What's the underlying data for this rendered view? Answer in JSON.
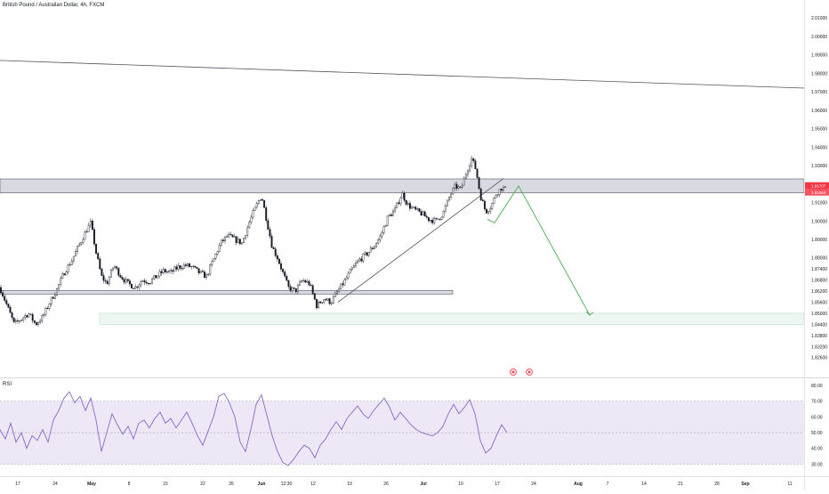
{
  "header": {
    "symbol_title": "British Pound / Australian Dollar",
    "interval": "4h",
    "exchange": "FXCM"
  },
  "colors": {
    "candle": "#131722",
    "zone_fill": "#d1d4dc",
    "zone_border": "#50535e",
    "target_fill": "#e6f4ec",
    "target_border": "#b2dfc6",
    "projection": "#4caf50",
    "rsi_line": "#7e57c2",
    "rsi_band": "#ede7f6",
    "price_tag": "#f23645",
    "event_icon": "#f23645"
  },
  "icons": {
    "events": [
      "economic-event-icon",
      "economic-event-icon"
    ]
  },
  "chart_data": [
    {
      "type": "candlestick",
      "title": "British Pound / Australian Dollar, 4h, FXCM",
      "y_axis": {
        "ticks": [
          "2.01000",
          "2.00000",
          "1.99000",
          "1.98000",
          "1.97000",
          "1.96000",
          "1.95000",
          "1.94000",
          "1.93000",
          "1.92000",
          "1.91000",
          "1.90000",
          "1.89000",
          "1.88000",
          "1.87400",
          "1.86800",
          "1.86200",
          "1.85600",
          "1.85000",
          "1.84400",
          "1.83800",
          "1.83200",
          "1.82600"
        ],
        "range": [
          1.822,
          2.013
        ]
      },
      "x_axis": {
        "ticks": [
          "17",
          "24",
          "May",
          "8",
          "15",
          "22",
          "26",
          "Jun",
          "12:30",
          "12",
          "19",
          "26",
          "Jul",
          "10",
          "17",
          "24",
          "Aug",
          "7",
          "14",
          "21",
          "28",
          "Sep",
          "11"
        ]
      },
      "current_price": {
        "bid": "1.91707",
        "ask": "1.91564"
      },
      "price_path": [
        [
          0,
          1.864
        ],
        [
          8,
          1.854
        ],
        [
          16,
          1.844
        ],
        [
          24,
          1.847
        ],
        [
          32,
          1.85
        ],
        [
          40,
          1.844
        ],
        [
          48,
          1.848
        ],
        [
          56,
          1.856
        ],
        [
          64,
          1.863
        ],
        [
          72,
          1.872
        ],
        [
          80,
          1.878
        ],
        [
          88,
          1.886
        ],
        [
          96,
          1.894
        ],
        [
          102,
          1.899
        ],
        [
          108,
          1.883
        ],
        [
          114,
          1.87
        ],
        [
          120,
          1.866
        ],
        [
          128,
          1.876
        ],
        [
          136,
          1.87
        ],
        [
          144,
          1.866
        ],
        [
          152,
          1.864
        ],
        [
          160,
          1.868
        ],
        [
          168,
          1.867
        ],
        [
          176,
          1.87
        ],
        [
          184,
          1.873
        ],
        [
          192,
          1.872
        ],
        [
          200,
          1.875
        ],
        [
          208,
          1.876
        ],
        [
          216,
          1.875
        ],
        [
          224,
          1.872
        ],
        [
          232,
          1.87
        ],
        [
          240,
          1.879
        ],
        [
          248,
          1.888
        ],
        [
          256,
          1.892
        ],
        [
          264,
          1.89
        ],
        [
          272,
          1.888
        ],
        [
          280,
          1.899
        ],
        [
          288,
          1.908
        ],
        [
          294,
          1.914
        ],
        [
          300,
          1.9
        ],
        [
          306,
          1.886
        ],
        [
          312,
          1.88
        ],
        [
          318,
          1.872
        ],
        [
          324,
          1.864
        ],
        [
          332,
          1.862
        ],
        [
          340,
          1.868
        ],
        [
          348,
          1.866
        ],
        [
          356,
          1.854
        ],
        [
          364,
          1.858
        ],
        [
          372,
          1.856
        ],
        [
          380,
          1.862
        ],
        [
          388,
          1.868
        ],
        [
          396,
          1.874
        ],
        [
          404,
          1.879
        ],
        [
          412,
          1.882
        ],
        [
          420,
          1.886
        ],
        [
          428,
          1.892
        ],
        [
          436,
          1.902
        ],
        [
          444,
          1.906
        ],
        [
          452,
          1.915
        ],
        [
          458,
          1.909
        ],
        [
          466,
          1.906
        ],
        [
          474,
          1.904
        ],
        [
          482,
          1.901
        ],
        [
          490,
          1.9
        ],
        [
          498,
          1.904
        ],
        [
          506,
          1.914
        ],
        [
          512,
          1.919
        ],
        [
          518,
          1.917
        ],
        [
          524,
          1.926
        ],
        [
          530,
          1.934
        ],
        [
          535,
          1.928
        ],
        [
          540,
          1.914
        ],
        [
          546,
          1.905
        ],
        [
          552,
          1.908
        ],
        [
          558,
          1.915
        ],
        [
          564,
          1.918
        ],
        [
          570,
          1.917
        ]
      ],
      "zones": [
        {
          "name": "resistance",
          "from": 1.9152,
          "to": 1.9228
        },
        {
          "name": "support",
          "from": 1.8604,
          "to": 1.8624
        },
        {
          "name": "target",
          "from": 1.844,
          "to": 1.85
        }
      ],
      "trendlines": [
        {
          "name": "long-descending",
          "points": [
            [
              0,
              1.987
            ],
            [
              904,
              1.972
            ]
          ]
        },
        {
          "name": "ascending-support",
          "points": [
            [
              380,
              1.856
            ],
            [
              566,
              1.923
            ]
          ]
        }
      ],
      "projection": [
        [
          548,
          1.901
        ],
        [
          556,
          1.899
        ],
        [
          583,
          1.919
        ],
        [
          663,
          1.849
        ]
      ]
    },
    {
      "type": "line",
      "title": "RSI",
      "y_axis": {
        "ticks": [
          "80.00",
          "70.00",
          "60.00",
          "50.00",
          "40.00",
          "30.00"
        ],
        "range": [
          24,
          84
        ]
      },
      "overbought": 70,
      "oversold": 30,
      "middle": 50,
      "series": [
        [
          0,
          52
        ],
        [
          6,
          46
        ],
        [
          12,
          56
        ],
        [
          18,
          44
        ],
        [
          24,
          50
        ],
        [
          30,
          40
        ],
        [
          36,
          48
        ],
        [
          42,
          45
        ],
        [
          48,
          52
        ],
        [
          54,
          44
        ],
        [
          60,
          58
        ],
        [
          66,
          64
        ],
        [
          72,
          72
        ],
        [
          78,
          76
        ],
        [
          84,
          69
        ],
        [
          90,
          73
        ],
        [
          96,
          64
        ],
        [
          102,
          72
        ],
        [
          108,
          58
        ],
        [
          114,
          38
        ],
        [
          120,
          50
        ],
        [
          126,
          62
        ],
        [
          132,
          55
        ],
        [
          138,
          49
        ],
        [
          144,
          54
        ],
        [
          150,
          46
        ],
        [
          156,
          56
        ],
        [
          162,
          58
        ],
        [
          168,
          53
        ],
        [
          174,
          59
        ],
        [
          180,
          63
        ],
        [
          186,
          56
        ],
        [
          192,
          59
        ],
        [
          198,
          53
        ],
        [
          204,
          58
        ],
        [
          210,
          63
        ],
        [
          216,
          56
        ],
        [
          222,
          48
        ],
        [
          228,
          42
        ],
        [
          234,
          51
        ],
        [
          240,
          60
        ],
        [
          246,
          73
        ],
        [
          252,
          75
        ],
        [
          258,
          69
        ],
        [
          264,
          60
        ],
        [
          270,
          44
        ],
        [
          276,
          38
        ],
        [
          282,
          52
        ],
        [
          288,
          68
        ],
        [
          294,
          74
        ],
        [
          300,
          61
        ],
        [
          306,
          48
        ],
        [
          312,
          38
        ],
        [
          318,
          31
        ],
        [
          324,
          29
        ],
        [
          330,
          33
        ],
        [
          336,
          38
        ],
        [
          342,
          42
        ],
        [
          348,
          40
        ],
        [
          354,
          34
        ],
        [
          360,
          42
        ],
        [
          366,
          46
        ],
        [
          372,
          52
        ],
        [
          378,
          57
        ],
        [
          384,
          52
        ],
        [
          390,
          59
        ],
        [
          396,
          63
        ],
        [
          402,
          67
        ],
        [
          408,
          62
        ],
        [
          414,
          59
        ],
        [
          420,
          64
        ],
        [
          426,
          68
        ],
        [
          432,
          72
        ],
        [
          438,
          66
        ],
        [
          444,
          58
        ],
        [
          450,
          63
        ],
        [
          456,
          59
        ],
        [
          462,
          55
        ],
        [
          468,
          52
        ],
        [
          474,
          50
        ],
        [
          480,
          49
        ],
        [
          486,
          48
        ],
        [
          492,
          50
        ],
        [
          498,
          54
        ],
        [
          504,
          62
        ],
        [
          510,
          68
        ],
        [
          516,
          62
        ],
        [
          522,
          66
        ],
        [
          528,
          71
        ],
        [
          534,
          62
        ],
        [
          540,
          45
        ],
        [
          546,
          37
        ],
        [
          552,
          40
        ],
        [
          558,
          48
        ],
        [
          564,
          55
        ],
        [
          570,
          50
        ]
      ]
    }
  ]
}
